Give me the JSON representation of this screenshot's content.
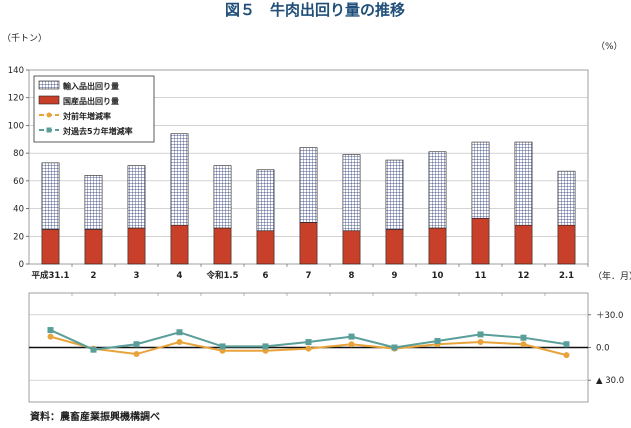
{
  "title": "図５　牛肉出回り量の推移",
  "source": "資料：農畜産業振興機構調べ",
  "chart_data": {
    "type": "bar",
    "unit_left": "（千トン）",
    "unit_right": "（%）",
    "x_unit": "（年．月）",
    "categories": [
      "平成31.1",
      "2",
      "3",
      "4",
      "令和1.5",
      "6",
      "7",
      "8",
      "9",
      "10",
      "11",
      "12",
      "2.1"
    ],
    "series": [
      {
        "name": "輸入品出回り量",
        "kind": "stacked-bar",
        "color": "#1a2a6c",
        "values": [
          48,
          39,
          45,
          66,
          45,
          44,
          54,
          55,
          50,
          55,
          55,
          60,
          39
        ]
      },
      {
        "name": "国産品出回り量",
        "kind": "stacked-bar",
        "color": "#c8402a",
        "values": [
          25,
          25,
          26,
          28,
          26,
          24,
          30,
          24,
          25,
          26,
          33,
          28,
          28
        ]
      },
      {
        "name": "対前年増減率",
        "kind": "line",
        "color": "#e8a33a",
        "values": [
          10,
          -1,
          -6,
          5,
          -3,
          -3,
          -1,
          3,
          -1,
          3,
          5,
          3,
          -7
        ]
      },
      {
        "name": "対過去5カ年増減率",
        "kind": "line",
        "color": "#5a9e9a",
        "values": [
          16,
          -2,
          3,
          14,
          1,
          1,
          5,
          10,
          0,
          6,
          12,
          9,
          3
        ]
      }
    ],
    "ylim": [
      0,
      140
    ],
    "yticks": [
      0,
      20,
      40,
      60,
      80,
      100,
      120,
      140
    ],
    "y2lim": [
      -50,
      50
    ],
    "y2ticks": [
      {
        "value": 30,
        "label": "＋30.0"
      },
      {
        "value": 0,
        "label": "0.0"
      },
      {
        "value": -30,
        "label": "▲ 30.0"
      }
    ],
    "legend_position": "top-left",
    "grid": true
  }
}
